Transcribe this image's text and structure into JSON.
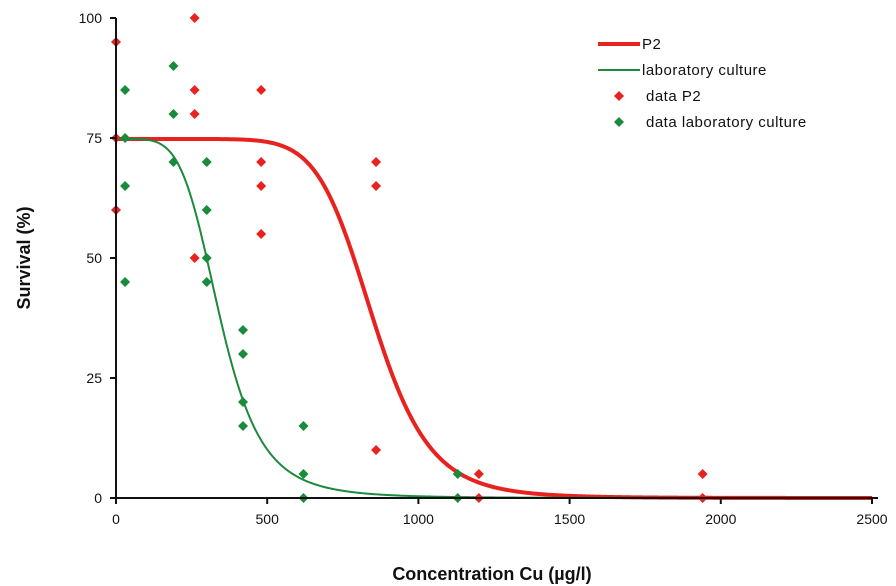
{
  "chart_data": {
    "type": "scatter",
    "title": "",
    "xlabel": "Concentration Cu (µg/l)",
    "ylabel": "Survival (%)",
    "xlim": [
      0,
      2500
    ],
    "ylim": [
      0,
      100
    ],
    "xticks": [
      "0",
      "500",
      "1000",
      "1500",
      "2000",
      "2500"
    ],
    "yticks": [
      "0",
      "25",
      "50",
      "75",
      "100"
    ],
    "grid": false,
    "legend_position": "top-right",
    "curves": [
      {
        "name": "P2",
        "color": "#e8221e",
        "top": 74.8,
        "ec50": 850,
        "slope": 9
      },
      {
        "name": "laboratory culture",
        "color": "#1a8a3c",
        "top": 74.8,
        "ec50": 345,
        "slope": 5
      }
    ],
    "scatter": [
      {
        "name": "data P2",
        "color": "#e8221e",
        "points": [
          [
            0,
            95
          ],
          [
            0,
            75
          ],
          [
            0,
            60
          ],
          [
            260,
            100
          ],
          [
            260,
            85
          ],
          [
            260,
            80
          ],
          [
            260,
            50
          ],
          [
            480,
            85
          ],
          [
            480,
            70
          ],
          [
            480,
            65
          ],
          [
            480,
            55
          ],
          [
            860,
            70
          ],
          [
            860,
            65
          ],
          [
            860,
            10
          ],
          [
            1200,
            5
          ],
          [
            1200,
            0
          ],
          [
            1940,
            5
          ],
          [
            1940,
            0
          ]
        ]
      },
      {
        "name": "data laboratory culture",
        "color": "#1a8a3c",
        "points": [
          [
            30,
            85
          ],
          [
            30,
            75
          ],
          [
            30,
            65
          ],
          [
            30,
            45
          ],
          [
            190,
            90
          ],
          [
            190,
            80
          ],
          [
            190,
            70
          ],
          [
            300,
            70
          ],
          [
            300,
            60
          ],
          [
            300,
            50
          ],
          [
            300,
            45
          ],
          [
            420,
            35
          ],
          [
            420,
            30
          ],
          [
            420,
            20
          ],
          [
            420,
            15
          ],
          [
            620,
            15
          ],
          [
            620,
            5
          ],
          [
            620,
            0
          ],
          [
            1130,
            5
          ],
          [
            1130,
            0
          ]
        ]
      }
    ],
    "legend": [
      {
        "label": "P2",
        "kind": "line",
        "color": "#e8221e"
      },
      {
        "label": "laboratory culture",
        "kind": "line",
        "color": "#1a8a3c"
      },
      {
        "label": "data P2",
        "kind": "marker",
        "color": "#e8221e"
      },
      {
        "label": "data laboratory culture",
        "kind": "marker",
        "color": "#1a8a3c"
      }
    ]
  }
}
